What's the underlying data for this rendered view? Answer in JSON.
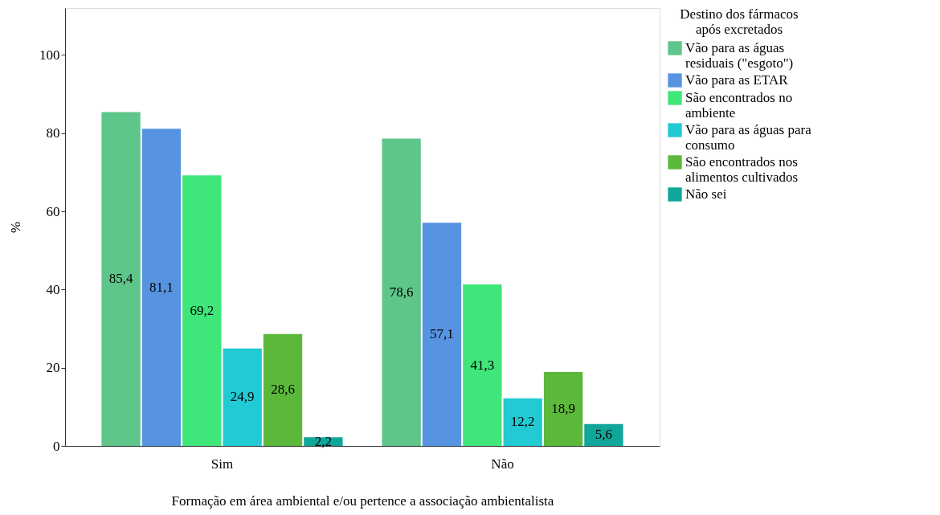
{
  "chart_data": {
    "type": "bar",
    "xlabel": "Formação em área ambiental e/ou pertence a associação ambientalista",
    "ylabel": "%",
    "legend_title": "Destino dos fármacos após excretados",
    "categories": [
      "Sim",
      "Não"
    ],
    "series": [
      {
        "name": "Vão para as águas residuais (\"esgoto\")",
        "color": "#5ec68a",
        "values": [
          85.4,
          78.6
        ],
        "value_labels": [
          "85,4",
          "78,6"
        ]
      },
      {
        "name": "Vão para as ETAR",
        "color": "#5694e2",
        "values": [
          81.1,
          57.1
        ],
        "value_labels": [
          "81,1",
          "57,1"
        ]
      },
      {
        "name": "São encontrados no ambiente",
        "color": "#3fe67a",
        "values": [
          69.2,
          41.3
        ],
        "value_labels": [
          "69,2",
          "41,3"
        ]
      },
      {
        "name": "Vão para as águas para consumo",
        "color": "#22cad3",
        "values": [
          24.9,
          12.2
        ],
        "value_labels": [
          "24,9",
          "12,2"
        ]
      },
      {
        "name": "São encontrados nos alimentos cultivados",
        "color": "#5cb83a",
        "values": [
          28.6,
          18.9
        ],
        "value_labels": [
          "28,6",
          "18,9"
        ]
      },
      {
        "name": "Não sei",
        "color": "#10a79a",
        "values": [
          2.2,
          5.6
        ],
        "value_labels": [
          "2,2",
          "5,6"
        ]
      }
    ],
    "ylim": [
      0,
      112
    ],
    "yticks": [
      0,
      20,
      40,
      60,
      80,
      100
    ],
    "grid": false,
    "legend": "top right"
  }
}
